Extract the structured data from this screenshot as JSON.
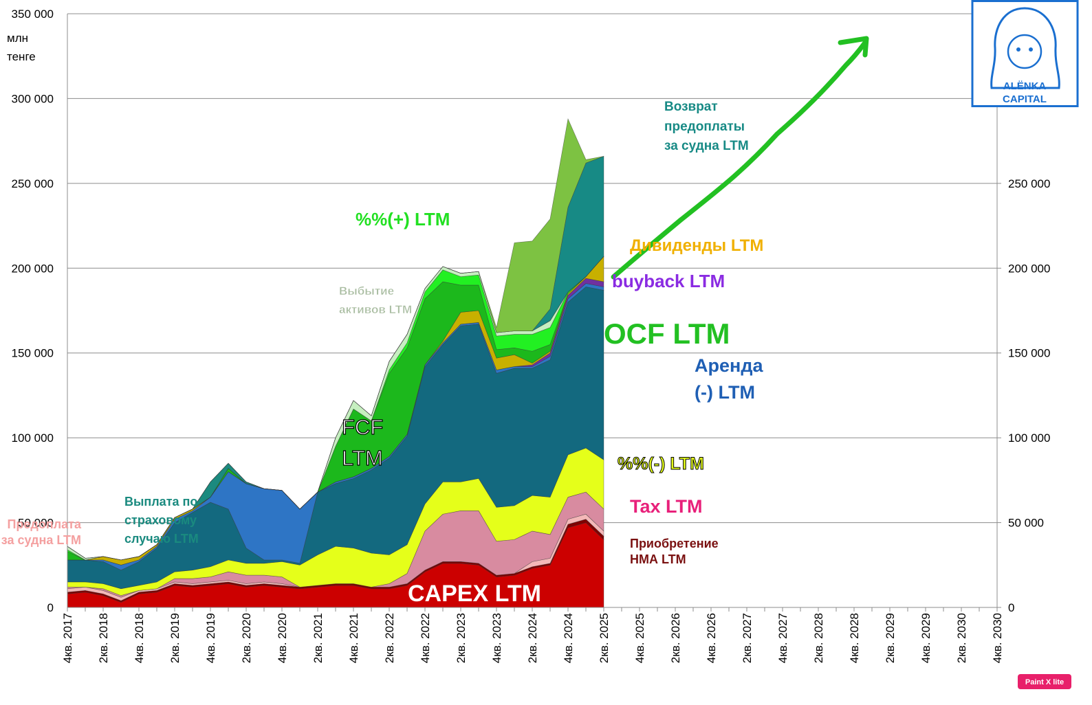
{
  "chart_data": {
    "type": "area",
    "stacked": true,
    "y_label": "млн\nтенге",
    "annotations": [
      "FCF\nLTM"
    ],
    "grid": true,
    "ylim": [
      0,
      350000
    ],
    "yticks": [
      0,
      {
        "value": 50000,
        "label": "50 000"
      },
      {
        "value": 100000,
        "label": "100 000"
      },
      {
        "value": 150000,
        "label": "150 000"
      },
      {
        "value": 200000,
        "label": "200 000"
      },
      {
        "value": 250000,
        "label": "250 000"
      },
      {
        "value": 300000,
        "label": "300 000"
      },
      {
        "value": 350000,
        "label": "350 000"
      }
    ],
    "y2lim": [
      0,
      350000
    ],
    "y2ticks": [
      0,
      {
        "value": 50000,
        "label": "50 000"
      },
      {
        "value": 100000,
        "label": "100 000"
      },
      {
        "value": 150000,
        "label": "150 000"
      },
      {
        "value": 200000,
        "label": "200 000"
      },
      {
        "value": 250000,
        "label": "250 000"
      }
    ],
    "categories": [
      "4кв. 2017",
      null,
      "2кв. 2018",
      null,
      "4кв. 2018",
      null,
      "2кв. 2019",
      null,
      "4кв. 2019",
      null,
      "2кв. 2020",
      null,
      "4кв. 2020",
      null,
      "2кв. 2021",
      null,
      "4кв. 2021",
      null,
      "2кв. 2022",
      null,
      "4кв. 2022",
      null,
      "2кв. 2023",
      null,
      "4кв. 2023",
      null,
      "2кв. 2024",
      null,
      "4кв. 2024",
      null,
      "2кв. 2025",
      null,
      "4кв. 2025",
      null,
      "2кв. 2026",
      null,
      "4кв. 2026",
      null,
      "2кв. 2027",
      null,
      "4кв. 2027",
      null,
      "2кв. 2028",
      null,
      "4кв. 2028",
      null,
      "2кв. 2029",
      null,
      "4кв. 2029",
      null,
      "2кв. 2030",
      null,
      "4кв. 2030"
    ],
    "series": [
      {
        "name": "CAPEX LTM",
        "color": "#cc0000",
        "values": [
          8000,
          9000,
          7000,
          3000,
          8000,
          9000,
          13000,
          12000,
          13000,
          14000,
          12000,
          13000,
          12000,
          11000,
          12000,
          13000,
          13000,
          11000,
          11000,
          13000,
          21000,
          26000,
          26000,
          25000,
          18000,
          19000,
          23000,
          25000,
          47000,
          50000,
          40000,
          null,
          null,
          null,
          null,
          null,
          null,
          null,
          null,
          null,
          null,
          null,
          null,
          null,
          null,
          null,
          null,
          null,
          null,
          null,
          null,
          null,
          null
        ]
      },
      {
        "name": "Приобретение\nНМА LTM",
        "color": "#7f0000",
        "values": [
          1000,
          1000,
          1000,
          1000,
          1000,
          1000,
          1000,
          1000,
          1000,
          1000,
          1000,
          1000,
          1000,
          1000,
          1000,
          1000,
          1000,
          1000,
          1000,
          1000,
          1000,
          1000,
          1000,
          1000,
          1000,
          1000,
          1000,
          1000,
          2000,
          2000,
          2000,
          null,
          null,
          null,
          null,
          null,
          null,
          null,
          null,
          null,
          null,
          null,
          null,
          null,
          null,
          null,
          null,
          null,
          null,
          null,
          null,
          null,
          null
        ]
      },
      {
        "name": "Предоплата\nза судна LTM",
        "color": "#f4b8b8",
        "values": [
          2000,
          2000,
          2000,
          2000,
          1000,
          1000,
          1000,
          1000,
          1000,
          1000,
          1000,
          1000,
          1000,
          0,
          0,
          0,
          0,
          0,
          0,
          0,
          0,
          0,
          0,
          0,
          0,
          0,
          3000,
          3000,
          3000,
          3000,
          3000,
          null,
          null,
          null,
          null,
          null,
          null,
          null,
          null,
          null,
          null,
          null,
          null,
          null,
          null,
          null,
          null,
          null,
          null,
          null,
          null,
          null,
          null
        ]
      },
      {
        "name": "Tax LTM",
        "color": "#d88ba0",
        "values": [
          1000,
          0,
          1000,
          1000,
          0,
          0,
          2000,
          3000,
          3000,
          5000,
          5000,
          4000,
          4000,
          0,
          0,
          0,
          0,
          0,
          2000,
          6000,
          23000,
          28000,
          30000,
          31000,
          20000,
          20000,
          18000,
          14000,
          13000,
          13000,
          13000,
          null,
          null,
          null,
          null,
          null,
          null,
          null,
          null,
          null,
          null,
          null,
          null,
          null,
          null,
          null,
          null,
          null,
          null,
          null,
          null,
          null,
          null
        ]
      },
      {
        "name": "%%(-) LTM",
        "color": "#e5ff1a",
        "values": [
          3000,
          3000,
          3000,
          4000,
          3000,
          4000,
          4000,
          5000,
          6000,
          7000,
          7000,
          7000,
          9000,
          13000,
          18000,
          22000,
          21000,
          20000,
          17000,
          17000,
          16000,
          19000,
          17000,
          19000,
          20000,
          20000,
          21000,
          22000,
          25000,
          26000,
          29000,
          null,
          null,
          null,
          null,
          null,
          null,
          null,
          null,
          null,
          null,
          null,
          null,
          null,
          null,
          null,
          null,
          null,
          null,
          null,
          null,
          null,
          null
        ]
      },
      {
        "color": "#13697f",
        "values": [
          13000,
          13000,
          13000,
          11000,
          14000,
          20000,
          29000,
          34000,
          38000,
          30000,
          9000,
          2000,
          1000,
          1000,
          37000,
          37000,
          41000,
          49000,
          57000,
          64000,
          81000,
          81000,
          92000,
          91000,
          79000,
          81000,
          75000,
          81000,
          90000,
          95000,
          100000,
          null,
          null,
          null,
          null,
          null,
          null,
          null,
          null,
          null,
          null,
          null,
          null,
          null,
          null,
          null,
          null,
          null,
          null,
          null,
          null,
          null,
          null
        ]
      },
      {
        "name": "Аренда\n(-) LTM",
        "color": "#2e75c5",
        "values": [
          0,
          0,
          1000,
          3000,
          1000,
          1000,
          2000,
          1000,
          3000,
          22000,
          38000,
          42000,
          41000,
          32000,
          0,
          1000,
          1000,
          1000,
          1000,
          1000,
          1000,
          1000,
          1000,
          1000,
          2000,
          1000,
          1000,
          2000,
          2000,
          2000,
          2000,
          null,
          null,
          null,
          null,
          null,
          null,
          null,
          null,
          null,
          null,
          null,
          null,
          null,
          null,
          null,
          null,
          null,
          null,
          null,
          null,
          null,
          null
        ]
      },
      {
        "name": "buyback LTM",
        "color": "#7030a0",
        "values": [
          0,
          0,
          0,
          0,
          0,
          0,
          0,
          0,
          0,
          0,
          0,
          0,
          0,
          0,
          0,
          0,
          0,
          0,
          0,
          0,
          0,
          0,
          0,
          0,
          0,
          0,
          1000,
          2000,
          2000,
          3000,
          3000,
          null,
          null,
          null,
          null,
          null,
          null,
          null,
          null,
          null,
          null,
          null,
          null,
          null,
          null,
          null,
          null,
          null,
          null,
          null,
          null,
          null,
          null
        ]
      },
      {
        "name": "Дивиденды LTM",
        "color": "#c8b000",
        "values": [
          0,
          0,
          2000,
          3000,
          2000,
          1000,
          1000,
          1000,
          0,
          0,
          0,
          0,
          0,
          0,
          0,
          0,
          0,
          0,
          0,
          0,
          0,
          1000,
          7000,
          7000,
          7000,
          7000,
          1000,
          1000,
          1000,
          1000,
          15000,
          null,
          null,
          null,
          null,
          null,
          null,
          null,
          null,
          null,
          null,
          null,
          null,
          null,
          null,
          null,
          null,
          null,
          null,
          null,
          null,
          null,
          null
        ]
      },
      {
        "name": "OCF LTM",
        "color": "#1cb81c",
        "values": [
          5000,
          0,
          0,
          0,
          0,
          0,
          0,
          0,
          0,
          2000,
          0,
          0,
          0,
          0,
          0,
          21000,
          40000,
          28000,
          49000,
          51000,
          39000,
          35000,
          16000,
          15000,
          5000,
          4000,
          7000,
          4000,
          0,
          0,
          0,
          null,
          null,
          null,
          null,
          null,
          null,
          null,
          null,
          null,
          null,
          null,
          null,
          null,
          null,
          null,
          null,
          null,
          null,
          null,
          null,
          null,
          null
        ]
      },
      {
        "name": "%%(+) LTM",
        "color": "#22f022",
        "values": [
          1000,
          0,
          0,
          0,
          0,
          0,
          0,
          0,
          0,
          0,
          0,
          0,
          0,
          0,
          0,
          0,
          0,
          0,
          2000,
          3000,
          4000,
          7000,
          5000,
          6000,
          8000,
          8000,
          10000,
          10000,
          1000,
          0,
          0,
          null,
          null,
          null,
          null,
          null,
          null,
          null,
          null,
          null,
          null,
          null,
          null,
          null,
          null,
          null,
          null,
          null,
          null,
          null,
          null,
          null,
          null
        ]
      },
      {
        "name": "Выбытие\nактивов LTM",
        "color": "#c6efc0",
        "values": [
          2000,
          1000,
          0,
          0,
          0,
          0,
          0,
          0,
          0,
          0,
          0,
          0,
          0,
          0,
          0,
          5000,
          5000,
          3000,
          5000,
          5000,
          2000,
          2000,
          2000,
          2000,
          2000,
          2000,
          2000,
          4000,
          0,
          0,
          0,
          null,
          null,
          null,
          null,
          null,
          null,
          null,
          null,
          null,
          null,
          null,
          null,
          null,
          null,
          null,
          null,
          null,
          null,
          null,
          null,
          null,
          null
        ]
      },
      {
        "name": "Выплата по\nстраховому\nслучаю LTM",
        "color": "#1b8a7f",
        "values": [
          0,
          0,
          0,
          0,
          0,
          0,
          0,
          0,
          9000,
          3000,
          1000,
          0,
          0,
          0,
          0,
          0,
          0,
          0,
          0,
          0,
          0,
          0,
          0,
          0,
          0,
          0,
          0,
          0,
          0,
          0,
          0,
          null,
          null,
          null,
          null,
          null,
          null,
          null,
          null,
          null,
          null,
          null,
          null,
          null,
          null,
          null,
          null,
          null,
          null,
          null,
          null,
          null,
          null
        ]
      },
      {
        "name": "Возврат\nпредоплаты\nза судна LTM",
        "color": "#178a85",
        "values": [
          0,
          0,
          0,
          0,
          0,
          0,
          0,
          0,
          0,
          0,
          0,
          0,
          0,
          0,
          0,
          0,
          0,
          0,
          0,
          0,
          0,
          0,
          0,
          0,
          0,
          0,
          0,
          7000,
          50000,
          67000,
          59000,
          null,
          null,
          null,
          null,
          null,
          null,
          null,
          null,
          null,
          null,
          null,
          null,
          null,
          null,
          null,
          null,
          null,
          null,
          null,
          null,
          null,
          null
        ]
      },
      {
        "color": "#7dc242",
        "values": [
          0,
          0,
          0,
          0,
          0,
          0,
          0,
          0,
          0,
          0,
          0,
          0,
          0,
          0,
          0,
          0,
          0,
          0,
          0,
          0,
          0,
          0,
          0,
          0,
          3000,
          52000,
          53000,
          53000,
          52000,
          2000,
          0,
          null,
          null,
          null,
          null,
          null,
          null,
          null,
          null,
          null,
          null,
          null,
          null,
          null,
          null,
          null,
          null,
          null,
          null,
          null,
          null,
          null,
          null
        ]
      }
    ]
  },
  "logo": {
    "lines": [
      "ALËNKA",
      "CAPITAL"
    ]
  },
  "badge": "Paint X lite"
}
